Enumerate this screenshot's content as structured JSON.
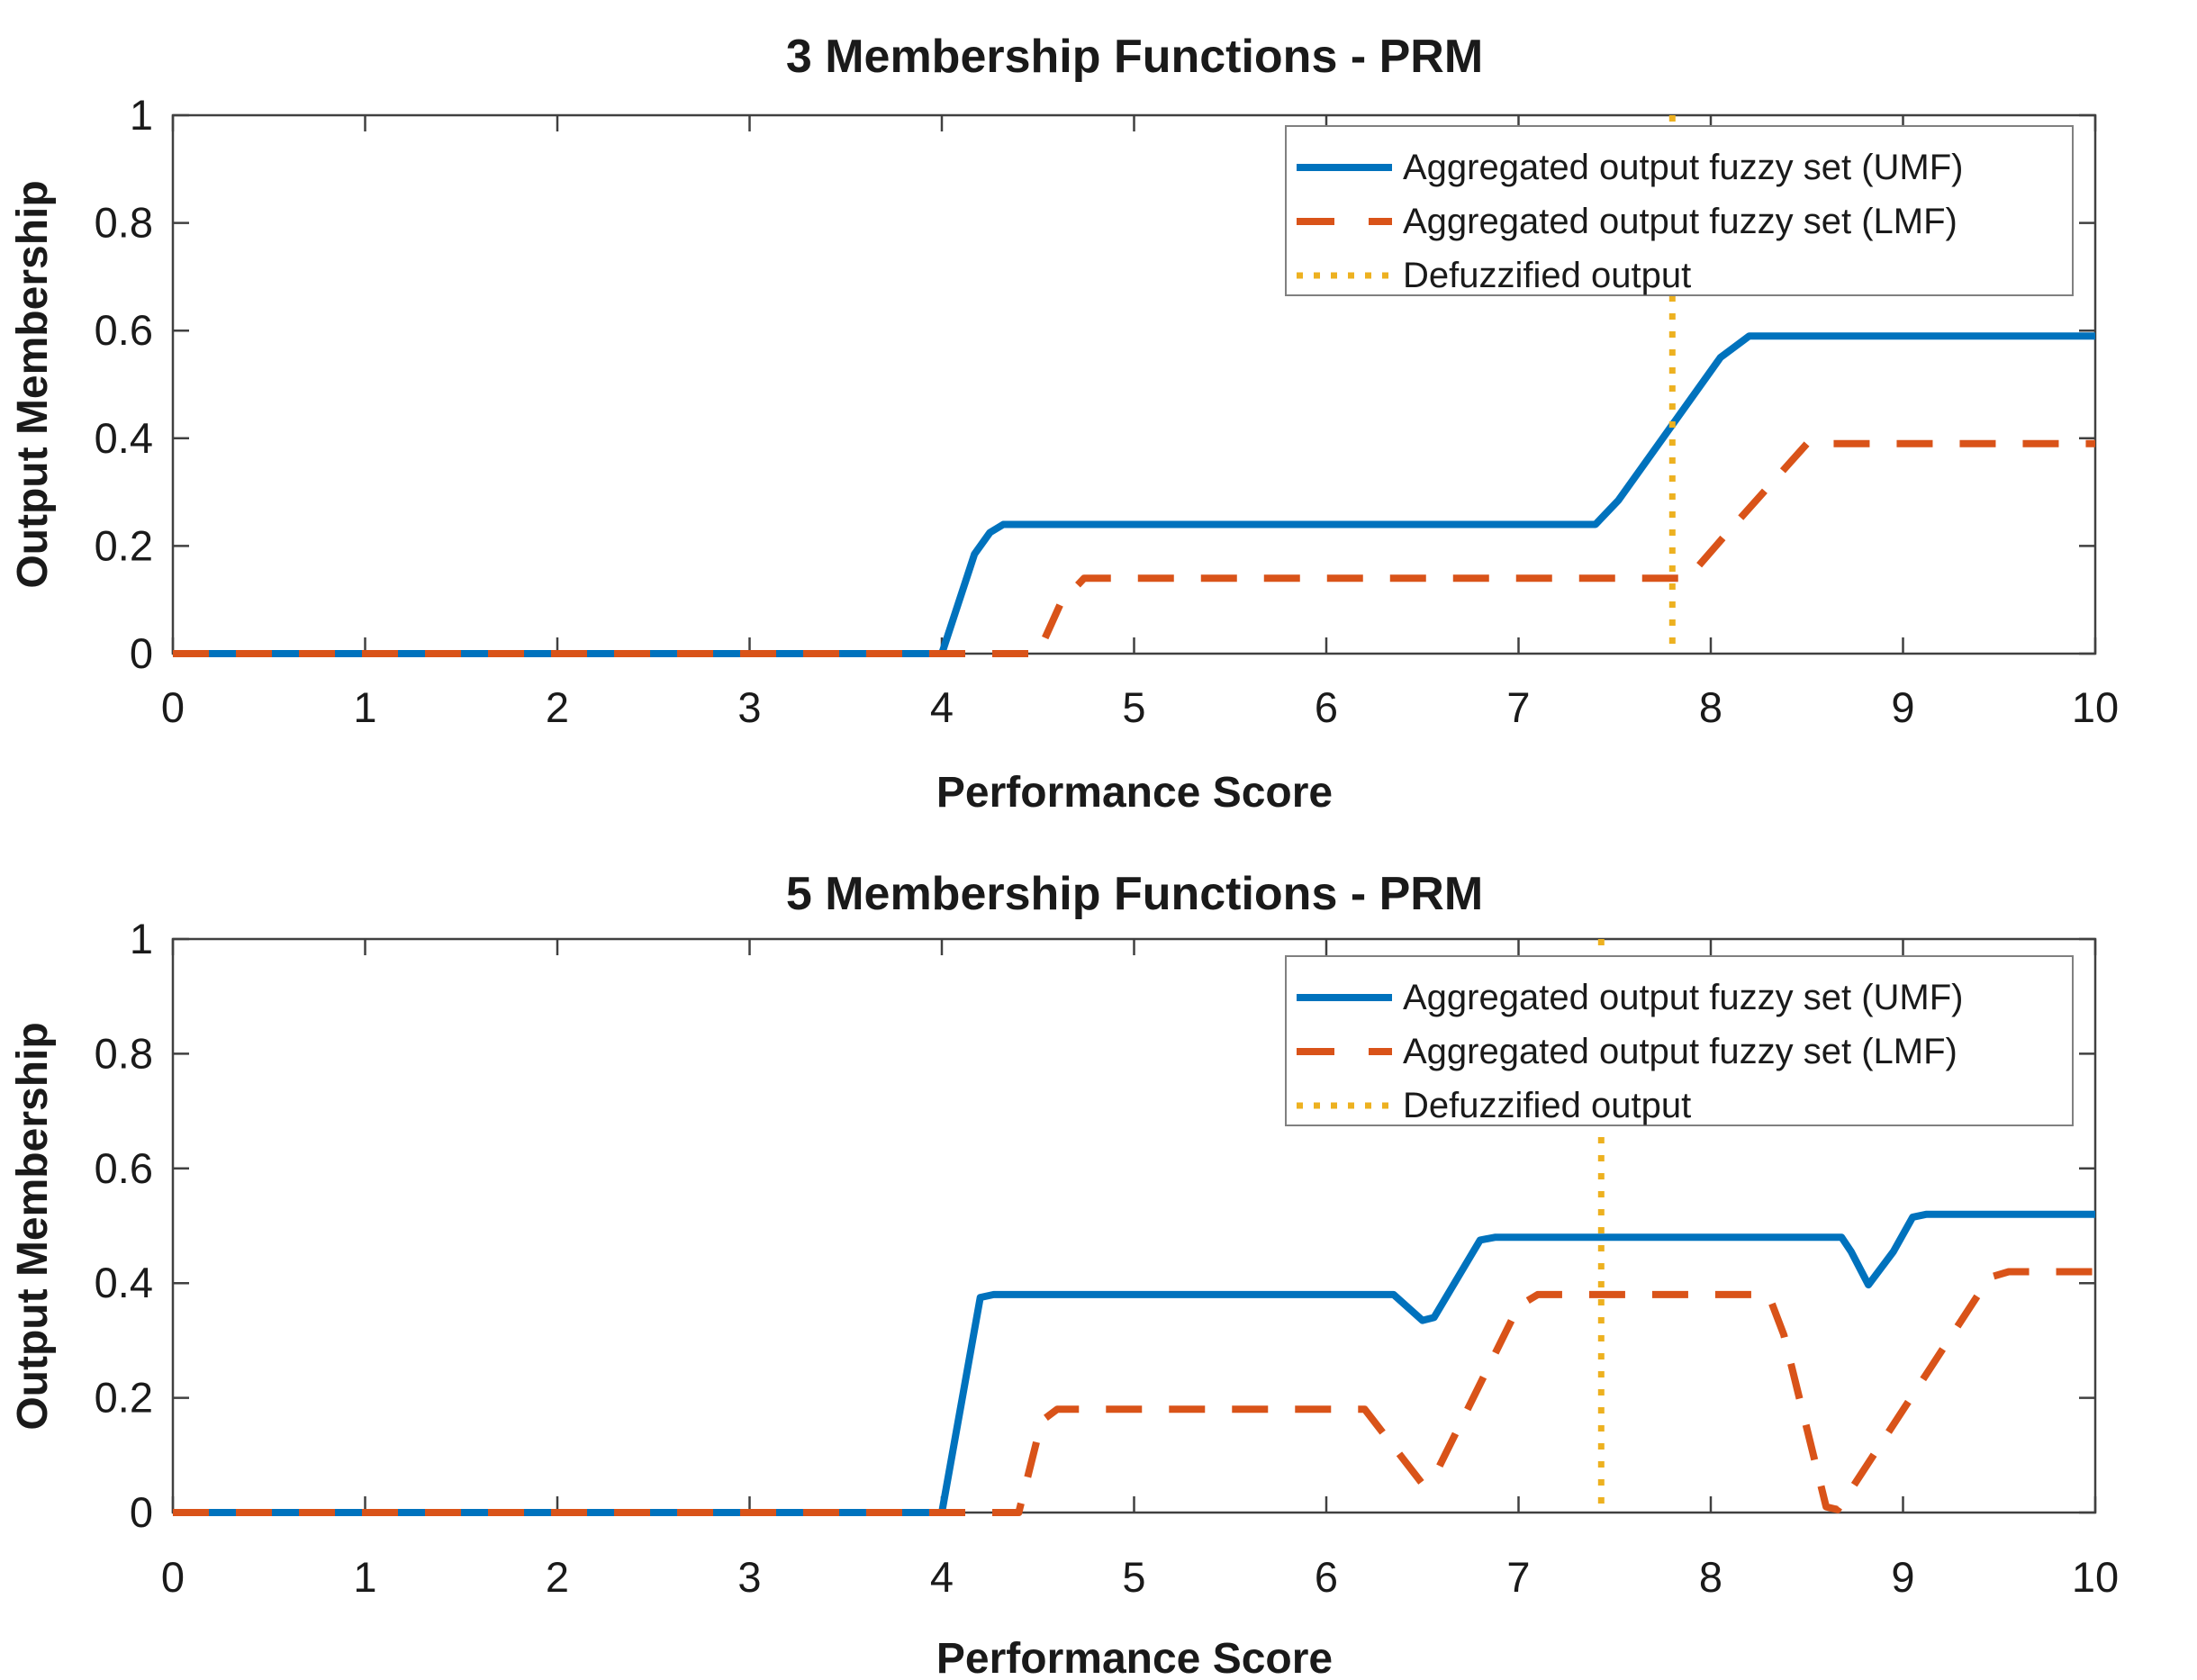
{
  "figure": {
    "background": "#ffffff",
    "colors": {
      "umf": "#0072BD",
      "lmf": "#D95319",
      "defuzzified": "#EDB120",
      "axis": "#404040",
      "legend_border": "#808080",
      "text": "#1a1a1a"
    }
  },
  "chart_data": [
    {
      "type": "line",
      "title": "3 Membership Functions - PRM",
      "xlabel": "Performance Score",
      "ylabel": "Output Membership",
      "xlim": [
        0,
        10
      ],
      "ylim": [
        0,
        1
      ],
      "xticks": [
        0,
        1,
        2,
        3,
        4,
        5,
        6,
        7,
        8,
        9,
        10
      ],
      "xtick_labels": [
        "0",
        "1",
        "2",
        "3",
        "4",
        "5",
        "6",
        "7",
        "8",
        "9",
        "10"
      ],
      "yticks": [
        0,
        0.2,
        0.4,
        0.6,
        0.8,
        1
      ],
      "ytick_labels": [
        "0",
        "0.2",
        "0.4",
        "0.6",
        "0.8",
        "1"
      ],
      "grid": false,
      "legend_position": "northeast",
      "defuzzified_output_x": 7.8,
      "series": [
        {
          "name": "Aggregated output fuzzy set (UMF)",
          "line_style": "solid",
          "color": "#0072BD",
          "points": [
            [
              0,
              0
            ],
            [
              4.0,
              0
            ],
            [
              4.17,
              0.185
            ],
            [
              4.25,
              0.225
            ],
            [
              4.32,
              0.24
            ],
            [
              7.4,
              0.24
            ],
            [
              7.52,
              0.285
            ],
            [
              8.05,
              0.55
            ],
            [
              8.2,
              0.59
            ],
            [
              10,
              0.59
            ]
          ]
        },
        {
          "name": "Aggregated output fuzzy set (LMF)",
          "line_style": "dashed",
          "color": "#D95319",
          "points": [
            [
              0,
              0
            ],
            [
              4.5,
              0
            ],
            [
              4.62,
              0.095
            ],
            [
              4.74,
              0.14
            ],
            [
              7.88,
              0.14
            ],
            [
              8.1,
              0.23
            ],
            [
              8.5,
              0.39
            ],
            [
              10,
              0.39
            ]
          ]
        },
        {
          "name": "Defuzzified output",
          "line_style": "dotted",
          "color": "#EDB120",
          "vertical_line_x": 7.8
        }
      ]
    },
    {
      "type": "line",
      "title": "5 Membership Functions - PRM",
      "xlabel": "Performance Score",
      "ylabel": "Output Membership",
      "xlim": [
        0,
        10
      ],
      "ylim": [
        0,
        1
      ],
      "xticks": [
        0,
        1,
        2,
        3,
        4,
        5,
        6,
        7,
        8,
        9,
        10
      ],
      "xtick_labels": [
        "0",
        "1",
        "2",
        "3",
        "4",
        "5",
        "6",
        "7",
        "8",
        "9",
        "10"
      ],
      "yticks": [
        0,
        0.2,
        0.4,
        0.6,
        0.8,
        1
      ],
      "ytick_labels": [
        "0",
        "0.2",
        "0.4",
        "0.6",
        "0.8",
        "1"
      ],
      "grid": false,
      "legend_position": "northeast",
      "defuzzified_output_x": 7.43,
      "series": [
        {
          "name": "Aggregated output fuzzy set (UMF)",
          "line_style": "solid",
          "color": "#0072BD",
          "points": [
            [
              0,
              0
            ],
            [
              4.0,
              0
            ],
            [
              4.2,
              0.375
            ],
            [
              4.27,
              0.38
            ],
            [
              6.35,
              0.38
            ],
            [
              6.5,
              0.335
            ],
            [
              6.56,
              0.34
            ],
            [
              6.8,
              0.475
            ],
            [
              6.88,
              0.48
            ],
            [
              8.68,
              0.48
            ],
            [
              8.73,
              0.455
            ],
            [
              8.82,
              0.397
            ],
            [
              8.95,
              0.455
            ],
            [
              9.05,
              0.515
            ],
            [
              9.12,
              0.52
            ],
            [
              10,
              0.52
            ]
          ]
        },
        {
          "name": "Aggregated output fuzzy set (LMF)",
          "line_style": "dashed",
          "color": "#D95319",
          "points": [
            [
              0,
              0
            ],
            [
              4.4,
              0
            ],
            [
              4.52,
              0.16
            ],
            [
              4.6,
              0.18
            ],
            [
              6.2,
              0.18
            ],
            [
              6.35,
              0.115
            ],
            [
              6.5,
              0.05
            ],
            [
              6.58,
              0.075
            ],
            [
              7.0,
              0.36
            ],
            [
              7.1,
              0.38
            ],
            [
              8.3,
              0.38
            ],
            [
              8.38,
              0.31
            ],
            [
              8.6,
              0.01
            ],
            [
              8.66,
              0.005
            ],
            [
              8.72,
              0.035
            ],
            [
              9.45,
              0.41
            ],
            [
              9.55,
              0.42
            ],
            [
              10,
              0.42
            ]
          ]
        },
        {
          "name": "Defuzzified output",
          "line_style": "dotted",
          "color": "#EDB120",
          "vertical_line_x": 7.43
        }
      ]
    }
  ]
}
